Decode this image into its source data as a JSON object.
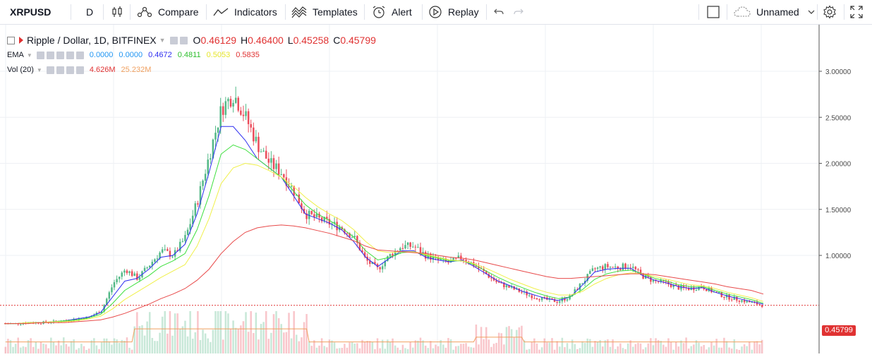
{
  "toolbar": {
    "symbol": "XRPUSD",
    "interval": "D",
    "compare_label": "Compare",
    "indicators_label": "Indicators",
    "templates_label": "Templates",
    "alert_label": "Alert",
    "replay_label": "Replay",
    "layout_name": "Unnamed"
  },
  "legend": {
    "title": "Ripple / Dollar, 1D, BITFINEX",
    "o_label": "O",
    "o": "0.46129",
    "h_label": "H",
    "h": "0.46400",
    "l_label": "L",
    "l": "0.45258",
    "c_label": "C",
    "c": "0.45799",
    "ema_label": "EMA",
    "ema_values": [
      "0.0000",
      "0.0000",
      "0.4672",
      "0.4811",
      "0.5053",
      "0.5835"
    ],
    "vol_label": "Vol (20)",
    "vol_values": [
      "4.626M",
      "25.232M"
    ]
  },
  "price_axis": {
    "ticks": [
      "3.00000",
      "2.50000",
      "2.00000",
      "1.50000",
      "1.00000"
    ],
    "current_price": "0.45799"
  },
  "colors": {
    "up": "#53b987",
    "down": "#eb4d5c",
    "ema_blue": "#2e2ef0",
    "ema_green": "#3ee03e",
    "ema_yellow": "#f0f04a",
    "ema_red": "#e84a4a",
    "vol_ma": "#f0a060",
    "price_line": "#e03232"
  },
  "chart_data": {
    "type": "candlestick",
    "y_range": [
      0,
      3.4
    ],
    "close_path": [
      0.26,
      0.26,
      0.27,
      0.27,
      0.28,
      0.29,
      0.31,
      0.33,
      0.4,
      0.7,
      0.85,
      0.75,
      0.9,
      1.05,
      1.0,
      1.2,
      1.6,
      2.1,
      2.6,
      2.75,
      2.5,
      2.2,
      2.0,
      1.9,
      1.7,
      1.45,
      1.4,
      1.35,
      1.3,
      1.2,
      0.95,
      0.85,
      1.0,
      1.1,
      1.1,
      1.0,
      0.95,
      0.92,
      0.98,
      0.9,
      0.8,
      0.7,
      0.65,
      0.6,
      0.55,
      0.52,
      0.5,
      0.55,
      0.7,
      0.85,
      0.88,
      0.87,
      0.89,
      0.78,
      0.72,
      0.7,
      0.65,
      0.64,
      0.66,
      0.6,
      0.55,
      0.52,
      0.49,
      0.46
    ],
    "ema_series": [
      {
        "key": "blue",
        "values": [
          0.26,
          0.26,
          0.27,
          0.27,
          0.28,
          0.29,
          0.31,
          0.33,
          0.38,
          0.55,
          0.72,
          0.75,
          0.85,
          0.98,
          1.0,
          1.12,
          1.45,
          1.9,
          2.4,
          2.4,
          2.25,
          2.05,
          1.95,
          1.85,
          1.65,
          1.45,
          1.4,
          1.35,
          1.28,
          1.15,
          0.98,
          0.88,
          0.97,
          1.05,
          1.05,
          0.98,
          0.95,
          0.93,
          0.95,
          0.88,
          0.8,
          0.72,
          0.67,
          0.61,
          0.57,
          0.53,
          0.51,
          0.55,
          0.68,
          0.82,
          0.85,
          0.86,
          0.86,
          0.78,
          0.73,
          0.7,
          0.66,
          0.64,
          0.65,
          0.6,
          0.56,
          0.53,
          0.5,
          0.47
        ]
      },
      {
        "key": "green",
        "values": [
          0.26,
          0.26,
          0.27,
          0.27,
          0.28,
          0.29,
          0.3,
          0.32,
          0.36,
          0.48,
          0.62,
          0.7,
          0.78,
          0.88,
          0.94,
          1.02,
          1.28,
          1.65,
          2.1,
          2.2,
          2.15,
          2.05,
          1.95,
          1.85,
          1.7,
          1.55,
          1.45,
          1.38,
          1.3,
          1.2,
          1.05,
          0.95,
          0.98,
          1.03,
          1.04,
          1.0,
          0.97,
          0.94,
          0.94,
          0.9,
          0.83,
          0.76,
          0.7,
          0.65,
          0.6,
          0.56,
          0.53,
          0.55,
          0.63,
          0.74,
          0.8,
          0.83,
          0.84,
          0.8,
          0.75,
          0.72,
          0.68,
          0.66,
          0.66,
          0.62,
          0.58,
          0.55,
          0.52,
          0.48
        ]
      },
      {
        "key": "yellow",
        "values": [
          0.26,
          0.26,
          0.27,
          0.27,
          0.28,
          0.28,
          0.29,
          0.31,
          0.34,
          0.42,
          0.52,
          0.6,
          0.68,
          0.76,
          0.83,
          0.9,
          1.1,
          1.4,
          1.78,
          1.95,
          2.0,
          1.98,
          1.92,
          1.85,
          1.75,
          1.63,
          1.53,
          1.45,
          1.38,
          1.28,
          1.15,
          1.05,
          1.03,
          1.04,
          1.04,
          1.01,
          0.98,
          0.95,
          0.94,
          0.91,
          0.86,
          0.8,
          0.74,
          0.69,
          0.64,
          0.6,
          0.57,
          0.57,
          0.61,
          0.69,
          0.75,
          0.79,
          0.81,
          0.8,
          0.77,
          0.74,
          0.71,
          0.68,
          0.67,
          0.64,
          0.6,
          0.57,
          0.54,
          0.5
        ]
      },
      {
        "key": "red",
        "values": [
          0.26,
          0.26,
          0.26,
          0.27,
          0.27,
          0.27,
          0.28,
          0.29,
          0.3,
          0.33,
          0.37,
          0.42,
          0.47,
          0.53,
          0.58,
          0.64,
          0.73,
          0.85,
          1.02,
          1.15,
          1.25,
          1.3,
          1.32,
          1.33,
          1.32,
          1.3,
          1.27,
          1.24,
          1.2,
          1.16,
          1.1,
          1.06,
          1.05,
          1.04,
          1.03,
          1.02,
          1.0,
          0.98,
          0.97,
          0.95,
          0.92,
          0.89,
          0.86,
          0.83,
          0.8,
          0.77,
          0.75,
          0.75,
          0.76,
          0.77,
          0.78,
          0.79,
          0.8,
          0.8,
          0.79,
          0.77,
          0.75,
          0.73,
          0.71,
          0.69,
          0.66,
          0.64,
          0.62,
          0.58
        ]
      }
    ],
    "current_price": 0.45799
  }
}
